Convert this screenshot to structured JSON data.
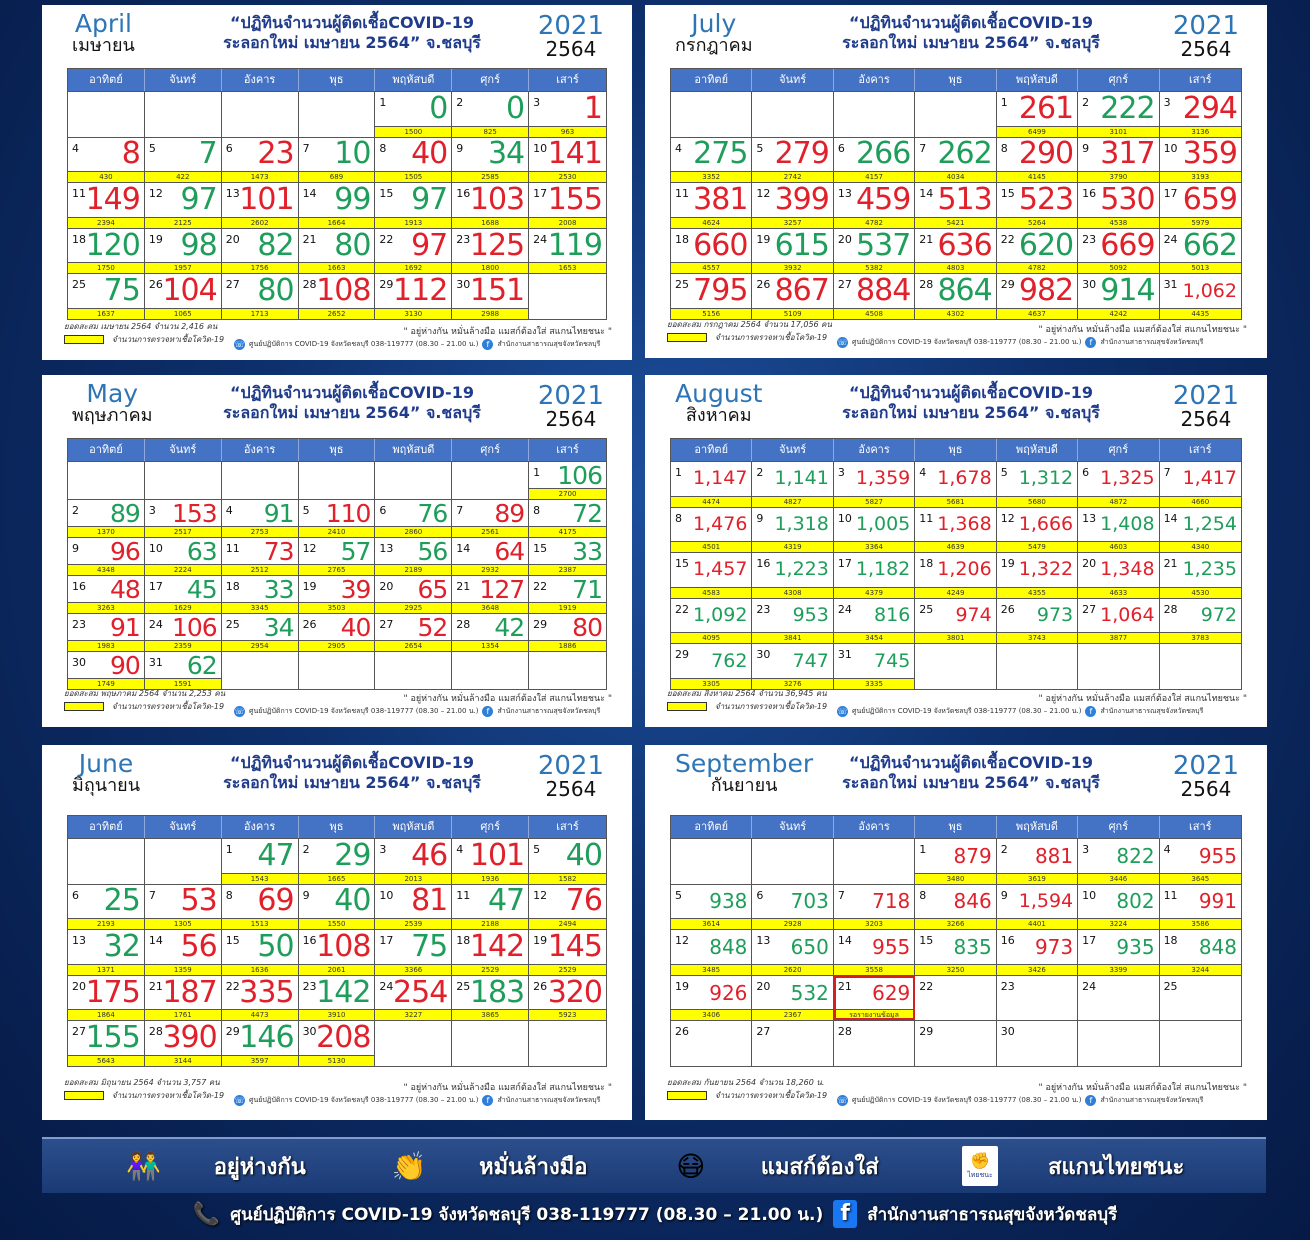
{
  "title_line1": "“ปฏิทินจำนวนผู้ติดเชื้อCOVID-19",
  "title_line2": "ระลอกใหม่ เมษายน 2564” จ.ชลบุรี",
  "weekdays": [
    "อาทิตย์",
    "จันทร์",
    "อังคาร",
    "พุธ",
    "พฤหัสบดี",
    "ศุกร์",
    "เสาร์"
  ],
  "legend_label": "จำนวนการตรวจหาเชื้อโควิด-19",
  "tagline": "\" อยู่ห่างกัน หมั่นล้างมือ แมสก์ต้องใส่ สแกนไทยชนะ \"",
  "contact_small": "ศูนย์ปฏิบัติการ COVID-19 จังหวัดชลบุรี 038-119777 (08.30 – 21.00 น.)",
  "office_small": "สำนักงานสาธารณสุขจังหวัดชลบุรี",
  "colors": {
    "increase": "#e0202a",
    "decrease_or_same": "#1e9e5a",
    "test_bar": "#ffff00",
    "header": "#4472c4"
  },
  "months": [
    {
      "name_en": "April",
      "name_th": "เมษายน",
      "year_ad": "2021",
      "year_be": "2564",
      "cumulative": "ยอดสะสม เมษายน 2564 จำนวน 2,416 คน",
      "cases": [
        "0",
        "0",
        "1",
        "8",
        "7",
        "23",
        "10",
        "40",
        "34",
        "141",
        "149",
        "97",
        "101",
        "99",
        "97",
        "103",
        "155",
        "120",
        "98",
        "82",
        "80",
        "97",
        "125",
        "119",
        "75",
        "104",
        "80",
        "108",
        "112",
        "151"
      ],
      "tests": [
        "1500",
        "825",
        "963",
        "430",
        "422",
        "1473",
        "689",
        "1505",
        "2585",
        "2530",
        "2394",
        "2125",
        "2602",
        "1664",
        "1913",
        "1688",
        "2008",
        "1750",
        "1957",
        "1756",
        "1663",
        "1692",
        "1800",
        "1653",
        "1637",
        "1065",
        "1713",
        "2652",
        "3130",
        "2988"
      ]
    },
    {
      "name_en": "July",
      "name_th": "กรกฎาคม",
      "year_ad": "2021",
      "year_be": "2564",
      "cumulative": "ยอดสะสม กรกฎาคม 2564 จำนวน 17,056 คน",
      "cases": [
        "261",
        "222",
        "294",
        "275",
        "279",
        "266",
        "262",
        "290",
        "317",
        "359",
        "381",
        "399",
        "459",
        "513",
        "523",
        "530",
        "659",
        "660",
        "615",
        "537",
        "636",
        "620",
        "669",
        "662",
        "795",
        "867",
        "884",
        "864",
        "982",
        "914",
        "1,062"
      ],
      "tests": [
        "6499",
        "3101",
        "3136",
        "3352",
        "2742",
        "4157",
        "4034",
        "4145",
        "3790",
        "3193",
        "4624",
        "3257",
        "4782",
        "5421",
        "5264",
        "4538",
        "5979",
        "4557",
        "3932",
        "5382",
        "4803",
        "4782",
        "5092",
        "5013",
        "5156",
        "5109",
        "4508",
        "4302",
        "4637",
        "4242",
        "4435"
      ]
    },
    {
      "name_en": "May",
      "name_th": "พฤษภาคม",
      "year_ad": "2021",
      "year_be": "2564",
      "cumulative": "ยอดสะสม พฤษภาคม 2564 จำนวน 2,253 คน",
      "cases": [
        "106",
        "89",
        "153",
        "91",
        "110",
        "76",
        "89",
        "72",
        "96",
        "63",
        "73",
        "57",
        "56",
        "64",
        "33",
        "48",
        "45",
        "33",
        "39",
        "65",
        "127",
        "71",
        "91",
        "106",
        "34",
        "40",
        "52",
        "42",
        "80",
        "90",
        "62"
      ],
      "tests": [
        "2700",
        "1370",
        "2517",
        "2753",
        "2410",
        "2860",
        "2561",
        "4175",
        "4348",
        "2224",
        "2512",
        "2765",
        "2189",
        "2932",
        "2387",
        "3263",
        "1629",
        "3345",
        "3503",
        "2925",
        "3648",
        "1919",
        "1983",
        "2359",
        "2954",
        "2905",
        "2654",
        "1354",
        "1886",
        "1749",
        "1591"
      ]
    },
    {
      "name_en": "August",
      "name_th": "สิงหาคม",
      "year_ad": "2021",
      "year_be": "2564",
      "cumulative": "ยอดสะสม สิงหาคม 2564 จำนวน 36,945 คน",
      "cases": [
        "1,147",
        "1,141",
        "1,359",
        "1,678",
        "1,312",
        "1,325",
        "1,417",
        "1,476",
        "1,318",
        "1,005",
        "1,368",
        "1,666",
        "1,408",
        "1,254",
        "1,457",
        "1,223",
        "1,182",
        "1,206",
        "1,322",
        "1,348",
        "1,235",
        "1,092",
        "953",
        "816",
        "974",
        "973",
        "1,064",
        "972",
        "762",
        "747",
        "745"
      ],
      "tests": [
        "4474",
        "4827",
        "5827",
        "5681",
        "5680",
        "4872",
        "4660",
        "4501",
        "4319",
        "3364",
        "4639",
        "5479",
        "4603",
        "4340",
        "4583",
        "4308",
        "4379",
        "4249",
        "4355",
        "4633",
        "4530",
        "4095",
        "3841",
        "3454",
        "3801",
        "3743",
        "3877",
        "3783",
        "3305",
        "3276",
        "3335"
      ]
    },
    {
      "name_en": "June",
      "name_th": "มิถุนายน",
      "year_ad": "2021",
      "year_be": "2564",
      "cumulative": "ยอดสะสม มิถุนายน 2564 จำนวน 3,757 คน",
      "cases": [
        "47",
        "29",
        "46",
        "101",
        "40",
        "25",
        "53",
        "69",
        "40",
        "81",
        "47",
        "76",
        "32",
        "56",
        "50",
        "108",
        "75",
        "142",
        "145",
        "175",
        "187",
        "335",
        "142",
        "254",
        "183",
        "320",
        "155",
        "390",
        "146",
        "208"
      ],
      "tests": [
        "1543",
        "1665",
        "2013",
        "1936",
        "1582",
        "2193",
        "1305",
        "1513",
        "1550",
        "2539",
        "2188",
        "2494",
        "1371",
        "1359",
        "1636",
        "2061",
        "3366",
        "2529",
        "2529",
        "1864",
        "1761",
        "4473",
        "3910",
        "3227",
        "3865",
        "5923",
        "5643",
        "3144",
        "3597",
        "5130"
      ]
    },
    {
      "name_en": "September",
      "name_th": "กันยายน",
      "year_ad": "2021",
      "year_be": "2564",
      "cumulative": "ยอดสะสม กันยายน 2564 จำนวน 18,260 น.",
      "cases": [
        "879",
        "881",
        "822",
        "955",
        "938",
        "703",
        "718",
        "846",
        "1,594",
        "802",
        "991",
        "848",
        "650",
        "955",
        "835",
        "973",
        "935",
        "848",
        "926",
        "532",
        "629"
      ],
      "tests": [
        "3480",
        "3619",
        "3446",
        "3645",
        "3614",
        "2928",
        "3203",
        "3266",
        "4401",
        "3224",
        "3586",
        "3485",
        "2620",
        "3558",
        "3250",
        "3426",
        "3399",
        "3244",
        "3406",
        "2367",
        "รอรายงานข้อมูล"
      ]
    }
  ],
  "banner": {
    "items": [
      {
        "icon": "social-distance-icon",
        "label": "อยู่ห่างกัน"
      },
      {
        "icon": "hand-wash-icon",
        "label": "หมั่นล้างมือ"
      },
      {
        "icon": "face-mask-icon",
        "label": "แมสก์ต้องใส่"
      },
      {
        "icon": "thaichana-logo-icon",
        "label": "สแกนไทยชนะ",
        "logo_text": "ไทยชนะ"
      }
    ],
    "contact": "ศูนย์ปฏิบัติการ COVID-19 จังหวัดชลบุรี 038-119777 (08.30 – 21.00 น.)",
    "office": "สำนักงานสาธารณสุขจังหวัดชลบุรี"
  }
}
